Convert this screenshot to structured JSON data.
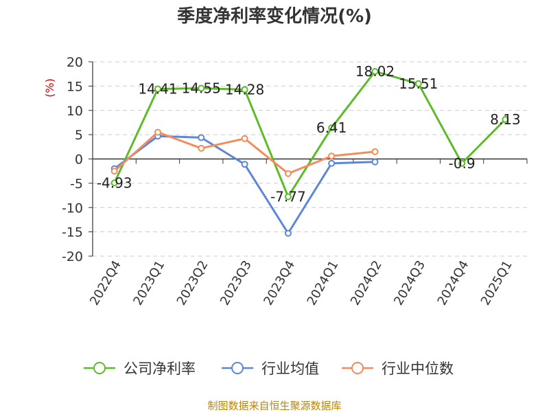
{
  "chart_data": {
    "type": "line",
    "title": "季度净利率变化情况(%)",
    "ylabel": "(%)",
    "ylim": [
      -20,
      20
    ],
    "yticks": [
      20,
      15,
      10,
      5,
      0,
      -5,
      -10,
      -15,
      -20
    ],
    "ytick_labels": [
      "20",
      "15",
      "10",
      "5",
      "0",
      "-5",
      "-10",
      "-15",
      "-20"
    ],
    "categories": [
      "2022Q4",
      "2023Q1",
      "2023Q2",
      "2023Q3",
      "2023Q4",
      "2024Q1",
      "2024Q2",
      "2024Q3",
      "2024Q4",
      "2025Q1"
    ],
    "grid": "horizontal-dashed",
    "legend_position": "bottom",
    "series": [
      {
        "name": "公司净利率",
        "color": "#5dbb2a",
        "values": [
          -4.93,
          14.41,
          14.55,
          14.28,
          -7.77,
          6.41,
          18.02,
          15.51,
          -0.9,
          8.13
        ],
        "data_labels": [
          "-4.93",
          "14.41",
          "14.55",
          "14.28",
          "-7.77",
          "6.41",
          "18.02",
          "15.51",
          "-0.9",
          "8.13"
        ]
      },
      {
        "name": "行业均值",
        "color": "#5b86d9",
        "values": [
          -2.0,
          4.7,
          4.4,
          -1.1,
          -15.3,
          -0.9,
          -0.6,
          null,
          null,
          null
        ]
      },
      {
        "name": "行业中位数",
        "color": "#f28c5a",
        "values": [
          -2.5,
          5.5,
          2.2,
          4.2,
          -3.0,
          0.6,
          1.5,
          null,
          null,
          null
        ]
      }
    ],
    "unit_color": "#cc0000"
  },
  "source_text": "制图数据来自恒生聚源数据库",
  "source_color": "#b8860b"
}
